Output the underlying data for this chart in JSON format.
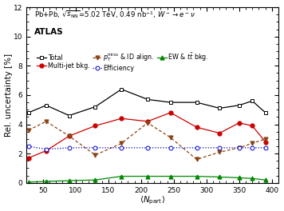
{
  "title_text": "Pb+Pb, $\\sqrt{s_{\\mathrm{NN}}}$=5.02 TeV, 0.49 nb$^{-1}$, $W^- \\rightarrow e^-\\nu$",
  "atlas_label": "ATLAS",
  "xlabel": "$\\langle N_{\\mathrm{part}} \\rangle$",
  "ylabel": "Rel. uncertainty [%]",
  "xlim": [
    25,
    410
  ],
  "ylim": [
    0,
    12
  ],
  "yticks": [
    0,
    2,
    4,
    6,
    8,
    10,
    12
  ],
  "xticks": [
    50,
    100,
    150,
    200,
    250,
    300,
    350,
    400
  ],
  "npart": [
    28,
    55,
    90,
    130,
    170,
    210,
    245,
    285,
    320,
    350,
    370,
    390
  ],
  "total": [
    4.8,
    5.3,
    4.6,
    5.2,
    6.4,
    5.7,
    5.5,
    5.5,
    5.1,
    5.3,
    5.6,
    4.8
  ],
  "total_color": "#000000",
  "multijet": [
    1.7,
    2.2,
    3.2,
    3.9,
    4.4,
    4.2,
    4.8,
    3.8,
    3.4,
    4.1,
    3.9,
    2.8
  ],
  "multijet_color": "#cc0000",
  "ptmiss": [
    3.6,
    4.2,
    3.2,
    1.9,
    2.7,
    4.1,
    3.1,
    1.6,
    2.1,
    2.4,
    2.7,
    3.0
  ],
  "ptmiss_color": "#8B4513",
  "efficiency": [
    2.5,
    2.3,
    2.4,
    2.4,
    2.4,
    2.4,
    2.4,
    2.4,
    2.4,
    2.4,
    2.4,
    2.4
  ],
  "efficiency_color": "#0000cc",
  "ew_ttbar": [
    0.05,
    0.1,
    0.15,
    0.2,
    0.45,
    0.45,
    0.45,
    0.45,
    0.4,
    0.35,
    0.3,
    0.2
  ],
  "ew_color": "#008800",
  "legend_fontsize": 5.8,
  "title_fontsize": 6.2,
  "atlas_fontsize": 7.5,
  "label_fontsize": 7.5,
  "tick_fontsize": 6.5,
  "markersize": 3.5
}
